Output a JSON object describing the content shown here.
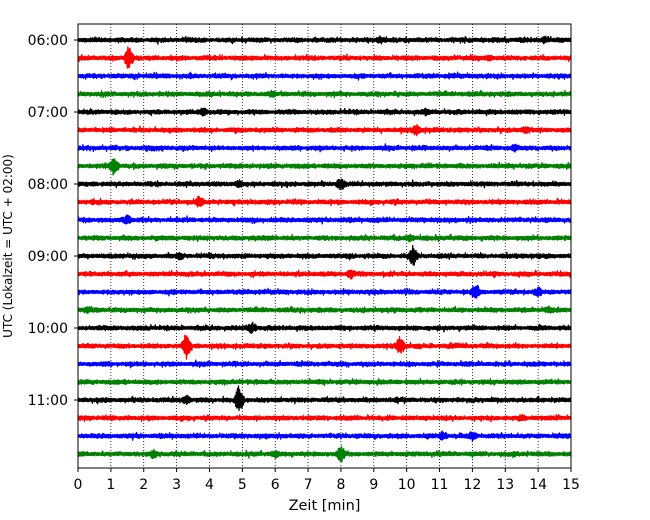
{
  "chart_data": {
    "type": "line",
    "title": "",
    "xlabel": "Zeit  [min]",
    "ylabel": "UTC (Lokalzeit = UTC + 02:00)",
    "xlim": [
      0,
      15
    ],
    "x_ticks": [
      0,
      1,
      2,
      3,
      4,
      5,
      6,
      7,
      8,
      9,
      10,
      11,
      12,
      13,
      14,
      15
    ],
    "x_tick_labels": [
      "0",
      "1",
      "2",
      "3",
      "4",
      "5",
      "6",
      "7",
      "8",
      "9",
      "10",
      "11",
      "12",
      "13",
      "14",
      "15"
    ],
    "y_ticks": [
      "06:00",
      "07:00",
      "08:00",
      "09:00",
      "10:00",
      "11:00"
    ],
    "grid": "vertical dotted",
    "row_minutes": 15,
    "start_time": "06:00",
    "end_time": "12:00",
    "line_colors": [
      "#000000",
      "#ff0000",
      "#0000ff",
      "#008000"
    ],
    "traces": [
      {
        "time": "06:00",
        "color": "#000000",
        "events": [
          [
            9.2,
            3
          ],
          [
            14.2,
            3
          ]
        ]
      },
      {
        "time": "06:15",
        "color": "#ff0000",
        "events": [
          [
            1.55,
            12
          ],
          [
            12.5,
            2
          ]
        ]
      },
      {
        "time": "06:30",
        "color": "#0000ff",
        "events": []
      },
      {
        "time": "06:45",
        "color": "#008000",
        "events": [
          [
            5.9,
            3
          ]
        ]
      },
      {
        "time": "07:00",
        "color": "#000000",
        "events": [
          [
            3.8,
            4
          ],
          [
            10.6,
            3
          ]
        ]
      },
      {
        "time": "07:15",
        "color": "#ff0000",
        "events": [
          [
            10.3,
            6
          ],
          [
            13.6,
            3
          ]
        ]
      },
      {
        "time": "07:30",
        "color": "#0000ff",
        "events": [
          [
            13.3,
            3
          ]
        ]
      },
      {
        "time": "07:45",
        "color": "#008000",
        "events": [
          [
            1.1,
            10
          ]
        ]
      },
      {
        "time": "08:00",
        "color": "#000000",
        "events": [
          [
            4.9,
            3
          ],
          [
            8.0,
            6
          ]
        ]
      },
      {
        "time": "08:15",
        "color": "#ff0000",
        "events": [
          [
            3.7,
            6
          ]
        ]
      },
      {
        "time": "08:30",
        "color": "#0000ff",
        "events": [
          [
            1.5,
            4
          ]
        ]
      },
      {
        "time": "08:45",
        "color": "#008000",
        "events": [
          [
            10.1,
            3
          ]
        ]
      },
      {
        "time": "09:00",
        "color": "#000000",
        "events": [
          [
            10.2,
            10
          ],
          [
            3.1,
            3
          ]
        ]
      },
      {
        "time": "09:15",
        "color": "#ff0000",
        "events": [
          [
            8.3,
            4
          ]
        ]
      },
      {
        "time": "09:30",
        "color": "#0000ff",
        "events": [
          [
            12.1,
            8
          ],
          [
            14.0,
            4
          ]
        ]
      },
      {
        "time": "09:45",
        "color": "#008000",
        "events": [
          [
            0.3,
            3
          ],
          [
            14.3,
            3
          ]
        ]
      },
      {
        "time": "10:00",
        "color": "#000000",
        "events": [
          [
            5.3,
            5
          ]
        ]
      },
      {
        "time": "10:15",
        "color": "#ff0000",
        "events": [
          [
            3.3,
            14
          ],
          [
            9.8,
            9
          ]
        ]
      },
      {
        "time": "10:30",
        "color": "#0000ff",
        "events": []
      },
      {
        "time": "10:45",
        "color": "#008000",
        "events": []
      },
      {
        "time": "11:00",
        "color": "#000000",
        "events": [
          [
            4.9,
            14
          ],
          [
            3.3,
            4
          ]
        ]
      },
      {
        "time": "11:15",
        "color": "#ff0000",
        "events": [
          [
            13.5,
            3
          ]
        ]
      },
      {
        "time": "11:30",
        "color": "#0000ff",
        "events": [
          [
            11.1,
            4
          ],
          [
            12.0,
            4
          ]
        ]
      },
      {
        "time": "11:45",
        "color": "#008000",
        "events": [
          [
            8.0,
            8
          ],
          [
            2.3,
            4
          ],
          [
            6.0,
            3
          ]
        ]
      }
    ]
  }
}
